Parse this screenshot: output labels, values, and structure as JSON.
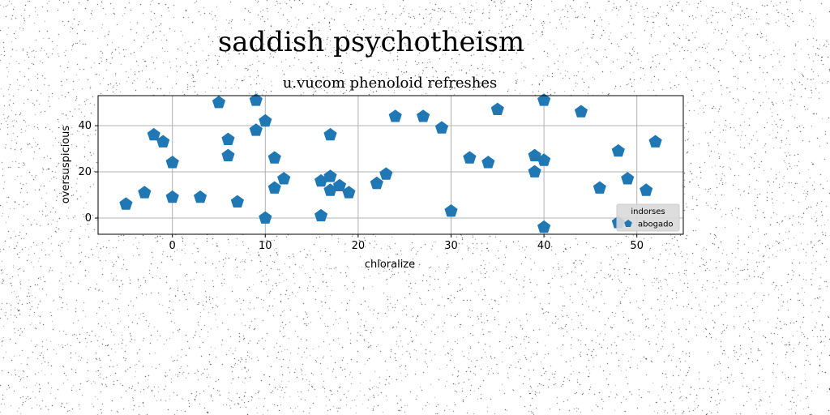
{
  "figure_title": "saddish psychotheism",
  "chart_data": {
    "type": "scatter",
    "title": "u.vucom phenoloid refreshes",
    "xlabel": "chloralize",
    "ylabel": "oversuspicious",
    "xlim": [
      -8,
      55
    ],
    "ylim": [
      -7,
      53
    ],
    "xticks": [
      0,
      10,
      20,
      30,
      40,
      50
    ],
    "yticks": [
      0,
      20,
      40
    ],
    "grid": true,
    "legend": {
      "title": "indorses",
      "placement": "lower-right"
    },
    "series": [
      {
        "name": "abogado",
        "color": "#1f77b4",
        "marker": "pentagon",
        "points": [
          [
            -5,
            6
          ],
          [
            -3,
            11
          ],
          [
            -2,
            36
          ],
          [
            -1,
            33
          ],
          [
            0,
            24
          ],
          [
            0,
            9
          ],
          [
            3,
            9
          ],
          [
            5,
            50
          ],
          [
            6,
            34
          ],
          [
            6,
            27
          ],
          [
            7,
            7
          ],
          [
            9,
            51
          ],
          [
            9,
            38
          ],
          [
            10,
            42
          ],
          [
            10,
            0
          ],
          [
            11,
            26
          ],
          [
            11,
            13
          ],
          [
            12,
            17
          ],
          [
            16,
            1
          ],
          [
            16,
            16
          ],
          [
            17,
            36
          ],
          [
            17,
            18
          ],
          [
            17,
            12
          ],
          [
            18,
            14
          ],
          [
            19,
            11
          ],
          [
            22,
            15
          ],
          [
            23,
            19
          ],
          [
            24,
            44
          ],
          [
            27,
            44
          ],
          [
            29,
            39
          ],
          [
            30,
            3
          ],
          [
            32,
            26
          ],
          [
            34,
            24
          ],
          [
            35,
            47
          ],
          [
            39,
            27
          ],
          [
            39,
            20
          ],
          [
            40,
            51
          ],
          [
            40,
            25
          ],
          [
            40,
            -4
          ],
          [
            44,
            46
          ],
          [
            46,
            13
          ],
          [
            48,
            29
          ],
          [
            48,
            -2
          ],
          [
            49,
            17
          ],
          [
            51,
            12
          ],
          [
            52,
            33
          ]
        ]
      }
    ]
  }
}
